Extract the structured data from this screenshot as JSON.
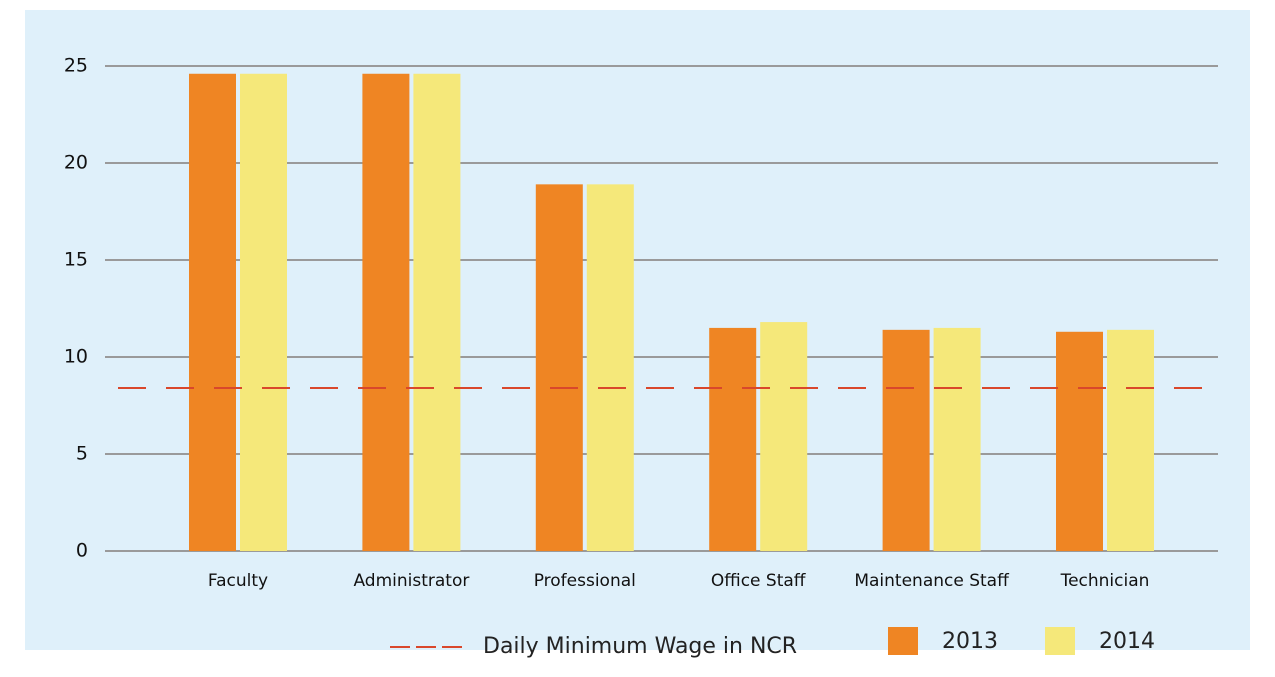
{
  "chart_data": {
    "type": "bar",
    "categories": [
      "Faculty",
      "Administrator",
      "Professional",
      "Office Staff",
      "Maintenance Staff",
      "Technician"
    ],
    "series": [
      {
        "name": "2013",
        "color": "#ef8523",
        "values": [
          24.6,
          24.6,
          18.9,
          11.5,
          11.4,
          11.3
        ]
      },
      {
        "name": "2014",
        "color": "#f5e87a",
        "values": [
          24.6,
          24.6,
          18.9,
          11.8,
          11.5,
          11.4
        ]
      }
    ],
    "reference_lines": [
      {
        "name": "Daily Minimum Wage in NCR",
        "value": 8.4,
        "color": "#d9472b"
      }
    ],
    "ylim": [
      0,
      25
    ],
    "yticks": [
      0,
      5,
      10,
      15,
      20,
      25
    ],
    "grid": true
  }
}
